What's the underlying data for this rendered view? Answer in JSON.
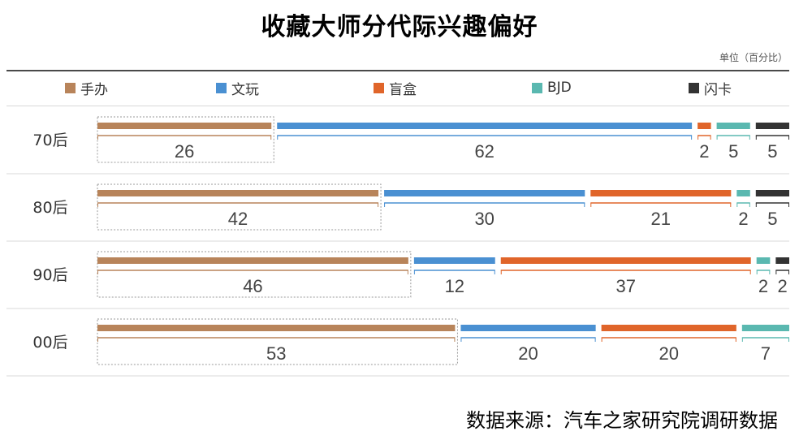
{
  "title": "收藏大师分代际兴趣偏好",
  "unit_label": "单位（百分比）",
  "source": "数据来源：汽车之家研究院调研数据",
  "colors": {
    "手办": "#b8845a",
    "文玩": "#4a90d2",
    "盲盒": "#e0652a",
    "BJD": "#5ab8b0",
    "闪卡": "#333333"
  },
  "legend": [
    {
      "label": "手办",
      "color": "#b8845a"
    },
    {
      "label": "文玩",
      "color": "#4a90d2"
    },
    {
      "label": "盲盒",
      "color": "#e0652a"
    },
    {
      "label": "BJD",
      "color": "#5ab8b0"
    },
    {
      "label": "闪卡",
      "color": "#333333"
    }
  ],
  "chart_data": {
    "type": "bar",
    "orientation": "horizontal",
    "stacked": true,
    "title": "收藏大师分代际兴趣偏好",
    "unit": "单位（百分比）",
    "categories": [
      "70后",
      "80后",
      "90后",
      "00后"
    ],
    "series": [
      {
        "name": "手办",
        "values": [
          26,
          42,
          46,
          53
        ]
      },
      {
        "name": "文玩",
        "values": [
          62,
          30,
          12,
          20
        ]
      },
      {
        "name": "盲盒",
        "values": [
          2,
          21,
          37,
          20
        ]
      },
      {
        "name": "BJD",
        "values": [
          5,
          2,
          2,
          7
        ]
      },
      {
        "name": "闪卡",
        "values": [
          5,
          5,
          2,
          null
        ]
      }
    ],
    "legend_position": "top",
    "highlight_series": "手办"
  }
}
